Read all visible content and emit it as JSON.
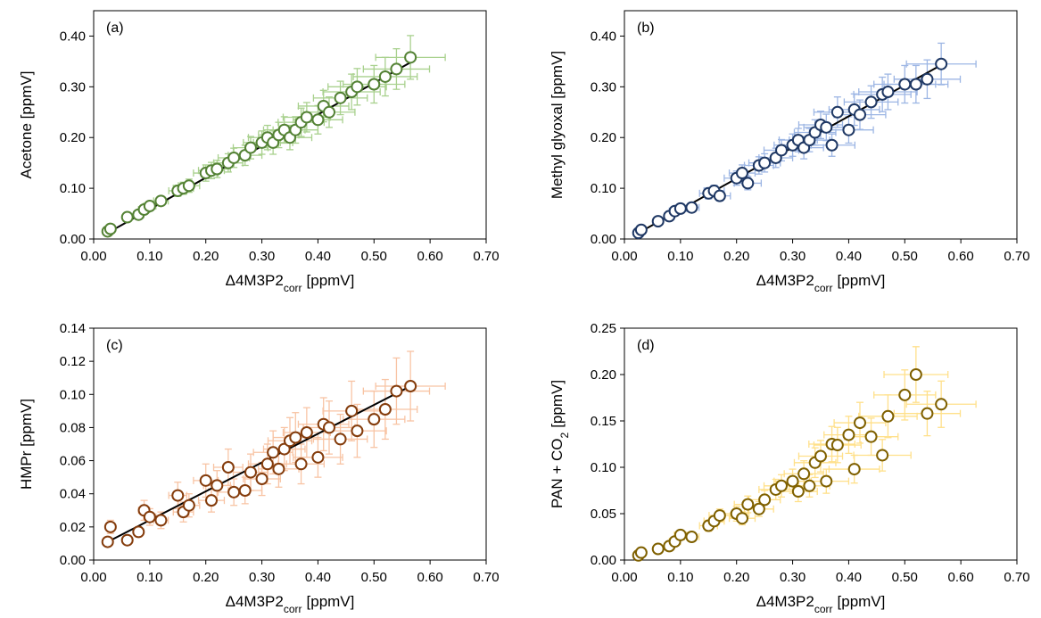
{
  "chart_data": [
    {
      "type": "scatter",
      "panel_label": "(a)",
      "x_label": [
        "Δ4M3P2",
        "corr",
        "[ppmV]"
      ],
      "y_label": [
        "Acetone [ppmV]"
      ],
      "marker_color": "#548235",
      "error_color": "#a9d18e",
      "fit_color": "#000000",
      "xlim": [
        0,
        0.7
      ],
      "ylim": [
        0,
        0.45
      ],
      "xticks": [
        {
          "value": 0,
          "label": "0.00"
        },
        {
          "value": 0.1,
          "label": "0.10"
        },
        {
          "value": 0.2,
          "label": "0.20"
        },
        {
          "value": 0.3,
          "label": "0.30"
        },
        {
          "value": 0.4,
          "label": "0.40"
        },
        {
          "value": 0.5,
          "label": "0.50"
        },
        {
          "value": 0.6,
          "label": "0.60"
        },
        {
          "value": 0.7,
          "label": "0.70"
        }
      ],
      "yticks": [
        {
          "value": 0,
          "label": "0.00"
        },
        {
          "value": 0.1,
          "label": "0.10"
        },
        {
          "value": 0.2,
          "label": "0.20"
        },
        {
          "value": 0.3,
          "label": "0.30"
        },
        {
          "value": 0.4,
          "label": "0.40"
        }
      ],
      "x": [
        0.025,
        0.03,
        0.06,
        0.08,
        0.09,
        0.1,
        0.12,
        0.15,
        0.16,
        0.17,
        0.2,
        0.21,
        0.22,
        0.24,
        0.25,
        0.27,
        0.28,
        0.3,
        0.31,
        0.32,
        0.33,
        0.34,
        0.35,
        0.36,
        0.37,
        0.38,
        0.4,
        0.41,
        0.42,
        0.44,
        0.46,
        0.47,
        0.5,
        0.52,
        0.54,
        0.565
      ],
      "x_error": [
        0.003,
        0.003,
        0.007,
        0.009,
        0.01,
        0.011,
        0.013,
        0.016,
        0.018,
        0.019,
        0.022,
        0.023,
        0.024,
        0.026,
        0.028,
        0.03,
        0.031,
        0.033,
        0.034,
        0.035,
        0.036,
        0.037,
        0.039,
        0.04,
        0.041,
        0.042,
        0.044,
        0.045,
        0.046,
        0.048,
        0.051,
        0.052,
        0.055,
        0.057,
        0.059,
        0.062
      ],
      "y": [
        0.015,
        0.02,
        0.043,
        0.048,
        0.058,
        0.065,
        0.075,
        0.095,
        0.1,
        0.105,
        0.13,
        0.135,
        0.138,
        0.15,
        0.16,
        0.165,
        0.18,
        0.19,
        0.2,
        0.19,
        0.205,
        0.215,
        0.2,
        0.215,
        0.23,
        0.24,
        0.235,
        0.262,
        0.25,
        0.278,
        0.29,
        0.3,
        0.305,
        0.32,
        0.335,
        0.358
      ],
      "y_error": [
        0.002,
        0.002,
        0.005,
        0.006,
        0.007,
        0.008,
        0.009,
        0.011,
        0.012,
        0.013,
        0.016,
        0.016,
        0.017,
        0.018,
        0.019,
        0.02,
        0.022,
        0.023,
        0.024,
        0.023,
        0.025,
        0.026,
        0.024,
        0.026,
        0.028,
        0.029,
        0.028,
        0.031,
        0.03,
        0.033,
        0.035,
        0.036,
        0.037,
        0.038,
        0.04,
        0.043
      ],
      "fit": {
        "x": [
          0.025,
          0.565
        ],
        "y": [
          0.012,
          0.348
        ]
      }
    },
    {
      "type": "scatter",
      "panel_label": "(b)",
      "x_label": [
        "Δ4M3P2",
        "corr",
        "[ppmV]"
      ],
      "y_label": [
        "Methyl glyoxal [ppmV]"
      ],
      "marker_color": "#1f3864",
      "error_color": "#9db6e4",
      "fit_color": "#000000",
      "xlim": [
        0,
        0.7
      ],
      "ylim": [
        0,
        0.45
      ],
      "xticks": [
        {
          "value": 0,
          "label": "0.00"
        },
        {
          "value": 0.1,
          "label": "0.10"
        },
        {
          "value": 0.2,
          "label": "0.20"
        },
        {
          "value": 0.3,
          "label": "0.30"
        },
        {
          "value": 0.4,
          "label": "0.40"
        },
        {
          "value": 0.5,
          "label": "0.50"
        },
        {
          "value": 0.6,
          "label": "0.60"
        },
        {
          "value": 0.7,
          "label": "0.70"
        }
      ],
      "yticks": [
        {
          "value": 0,
          "label": "0.00"
        },
        {
          "value": 0.1,
          "label": "0.10"
        },
        {
          "value": 0.2,
          "label": "0.20"
        },
        {
          "value": 0.3,
          "label": "0.30"
        },
        {
          "value": 0.4,
          "label": "0.40"
        }
      ],
      "x": [
        0.025,
        0.03,
        0.06,
        0.08,
        0.09,
        0.1,
        0.12,
        0.15,
        0.16,
        0.17,
        0.2,
        0.21,
        0.22,
        0.24,
        0.25,
        0.27,
        0.28,
        0.3,
        0.31,
        0.32,
        0.33,
        0.34,
        0.35,
        0.36,
        0.37,
        0.38,
        0.4,
        0.41,
        0.42,
        0.44,
        0.46,
        0.47,
        0.5,
        0.52,
        0.54,
        0.565
      ],
      "x_error": [
        0.003,
        0.003,
        0.007,
        0.009,
        0.01,
        0.011,
        0.013,
        0.016,
        0.018,
        0.019,
        0.022,
        0.023,
        0.024,
        0.026,
        0.028,
        0.03,
        0.031,
        0.033,
        0.034,
        0.035,
        0.036,
        0.037,
        0.039,
        0.04,
        0.041,
        0.042,
        0.044,
        0.045,
        0.046,
        0.048,
        0.051,
        0.052,
        0.055,
        0.057,
        0.059,
        0.062
      ],
      "y": [
        0.012,
        0.018,
        0.035,
        0.045,
        0.055,
        0.06,
        0.062,
        0.09,
        0.095,
        0.085,
        0.12,
        0.13,
        0.11,
        0.145,
        0.15,
        0.16,
        0.175,
        0.185,
        0.195,
        0.18,
        0.195,
        0.21,
        0.225,
        0.22,
        0.185,
        0.25,
        0.215,
        0.255,
        0.245,
        0.27,
        0.285,
        0.29,
        0.305,
        0.305,
        0.315,
        0.345
      ],
      "y_error": [
        0.001,
        0.002,
        0.004,
        0.005,
        0.007,
        0.007,
        0.007,
        0.011,
        0.011,
        0.01,
        0.014,
        0.016,
        0.013,
        0.017,
        0.018,
        0.019,
        0.021,
        0.022,
        0.023,
        0.022,
        0.023,
        0.025,
        0.027,
        0.026,
        0.022,
        0.03,
        0.026,
        0.031,
        0.029,
        0.032,
        0.034,
        0.035,
        0.037,
        0.037,
        0.038,
        0.041
      ],
      "fit": {
        "x": [
          0.025,
          0.565
        ],
        "y": [
          0.012,
          0.343
        ]
      }
    },
    {
      "type": "scatter",
      "panel_label": "(c)",
      "x_label": [
        "Δ4M3P2",
        "corr",
        "[ppmV]"
      ],
      "y_label": [
        "HMPr [ppmV]"
      ],
      "marker_color": "#843c0c",
      "error_color": "#f8c4a4",
      "fit_color": "#000000",
      "xlim": [
        0,
        0.7
      ],
      "ylim": [
        0,
        0.14
      ],
      "xticks": [
        {
          "value": 0,
          "label": "0.00"
        },
        {
          "value": 0.1,
          "label": "0.10"
        },
        {
          "value": 0.2,
          "label": "0.20"
        },
        {
          "value": 0.3,
          "label": "0.30"
        },
        {
          "value": 0.4,
          "label": "0.40"
        },
        {
          "value": 0.5,
          "label": "0.50"
        },
        {
          "value": 0.6,
          "label": "0.60"
        },
        {
          "value": 0.7,
          "label": "0.70"
        }
      ],
      "yticks": [
        {
          "value": 0,
          "label": "0.00"
        },
        {
          "value": 0.02,
          "label": "0.02"
        },
        {
          "value": 0.04,
          "label": "0.04"
        },
        {
          "value": 0.06,
          "label": "0.06"
        },
        {
          "value": 0.08,
          "label": "0.08"
        },
        {
          "value": 0.1,
          "label": "0.10"
        },
        {
          "value": 0.12,
          "label": "0.12"
        },
        {
          "value": 0.14,
          "label": "0.14"
        }
      ],
      "x": [
        0.025,
        0.03,
        0.06,
        0.08,
        0.09,
        0.1,
        0.12,
        0.15,
        0.16,
        0.17,
        0.2,
        0.21,
        0.22,
        0.24,
        0.25,
        0.27,
        0.28,
        0.3,
        0.31,
        0.32,
        0.33,
        0.34,
        0.35,
        0.36,
        0.37,
        0.38,
        0.4,
        0.41,
        0.42,
        0.44,
        0.46,
        0.47,
        0.5,
        0.52,
        0.54,
        0.565
      ],
      "x_error": [
        0.003,
        0.003,
        0.007,
        0.009,
        0.01,
        0.011,
        0.013,
        0.016,
        0.018,
        0.019,
        0.022,
        0.023,
        0.024,
        0.026,
        0.028,
        0.03,
        0.031,
        0.033,
        0.034,
        0.035,
        0.036,
        0.037,
        0.039,
        0.04,
        0.041,
        0.042,
        0.044,
        0.045,
        0.046,
        0.048,
        0.051,
        0.052,
        0.055,
        0.057,
        0.059,
        0.062
      ],
      "y": [
        0.011,
        0.02,
        0.012,
        0.017,
        0.03,
        0.026,
        0.024,
        0.039,
        0.029,
        0.033,
        0.048,
        0.036,
        0.045,
        0.056,
        0.041,
        0.042,
        0.053,
        0.049,
        0.058,
        0.065,
        0.055,
        0.067,
        0.072,
        0.074,
        0.058,
        0.077,
        0.062,
        0.082,
        0.08,
        0.073,
        0.09,
        0.078,
        0.085,
        0.091,
        0.102,
        0.105
      ],
      "y_error": [
        0.002,
        0.004,
        0.002,
        0.003,
        0.006,
        0.005,
        0.005,
        0.008,
        0.006,
        0.007,
        0.01,
        0.007,
        0.009,
        0.011,
        0.008,
        0.008,
        0.011,
        0.01,
        0.012,
        0.013,
        0.011,
        0.013,
        0.014,
        0.015,
        0.012,
        0.015,
        0.012,
        0.016,
        0.016,
        0.015,
        0.018,
        0.016,
        0.017,
        0.018,
        0.02,
        0.021
      ],
      "fit": {
        "x": [
          0.025,
          0.565
        ],
        "y": [
          0.011,
          0.105
        ]
      }
    },
    {
      "type": "scatter",
      "panel_label": "(d)",
      "x_label": [
        "Δ4M3P2",
        "corr",
        "[ppmV]"
      ],
      "y_label": [
        "PAN + CO",
        "2",
        "[ppmV]"
      ],
      "marker_color": "#7f6000",
      "error_color": "#ffe08a",
      "xlim": [
        0,
        0.7
      ],
      "ylim": [
        0,
        0.25
      ],
      "xticks": [
        {
          "value": 0,
          "label": "0.00"
        },
        {
          "value": 0.1,
          "label": "0.10"
        },
        {
          "value": 0.2,
          "label": "0.20"
        },
        {
          "value": 0.3,
          "label": "0.30"
        },
        {
          "value": 0.4,
          "label": "0.40"
        },
        {
          "value": 0.5,
          "label": "0.50"
        },
        {
          "value": 0.6,
          "label": "0.60"
        },
        {
          "value": 0.7,
          "label": "0.70"
        }
      ],
      "yticks": [
        {
          "value": 0,
          "label": "0.00"
        },
        {
          "value": 0.05,
          "label": "0.05"
        },
        {
          "value": 0.1,
          "label": "0.10"
        },
        {
          "value": 0.15,
          "label": "0.15"
        },
        {
          "value": 0.2,
          "label": "0.20"
        },
        {
          "value": 0.25,
          "label": "0.25"
        }
      ],
      "x": [
        0.025,
        0.03,
        0.06,
        0.08,
        0.09,
        0.1,
        0.12,
        0.15,
        0.16,
        0.17,
        0.2,
        0.21,
        0.22,
        0.24,
        0.25,
        0.27,
        0.28,
        0.3,
        0.31,
        0.32,
        0.33,
        0.34,
        0.35,
        0.36,
        0.37,
        0.38,
        0.4,
        0.41,
        0.42,
        0.44,
        0.46,
        0.47,
        0.5,
        0.52,
        0.54,
        0.565
      ],
      "x_error": [
        0.003,
        0.003,
        0.007,
        0.009,
        0.01,
        0.011,
        0.013,
        0.016,
        0.018,
        0.019,
        0.022,
        0.023,
        0.024,
        0.026,
        0.028,
        0.03,
        0.031,
        0.033,
        0.034,
        0.035,
        0.036,
        0.037,
        0.039,
        0.04,
        0.041,
        0.042,
        0.044,
        0.045,
        0.046,
        0.048,
        0.051,
        0.052,
        0.055,
        0.057,
        0.059,
        0.062
      ],
      "y": [
        0.005,
        0.008,
        0.012,
        0.015,
        0.02,
        0.027,
        0.025,
        0.037,
        0.042,
        0.048,
        0.05,
        0.045,
        0.06,
        0.055,
        0.065,
        0.076,
        0.08,
        0.085,
        0.074,
        0.093,
        0.08,
        0.105,
        0.112,
        0.085,
        0.125,
        0.124,
        0.135,
        0.098,
        0.148,
        0.133,
        0.113,
        0.155,
        0.178,
        0.2,
        0.158,
        0.168
      ],
      "y_error": [
        0.001,
        0.001,
        0.002,
        0.002,
        0.003,
        0.004,
        0.004,
        0.006,
        0.006,
        0.007,
        0.008,
        0.007,
        0.009,
        0.008,
        0.01,
        0.011,
        0.012,
        0.013,
        0.011,
        0.014,
        0.012,
        0.016,
        0.017,
        0.013,
        0.019,
        0.019,
        0.02,
        0.015,
        0.022,
        0.02,
        0.017,
        0.023,
        0.027,
        0.03,
        0.024,
        0.025
      ]
    }
  ]
}
